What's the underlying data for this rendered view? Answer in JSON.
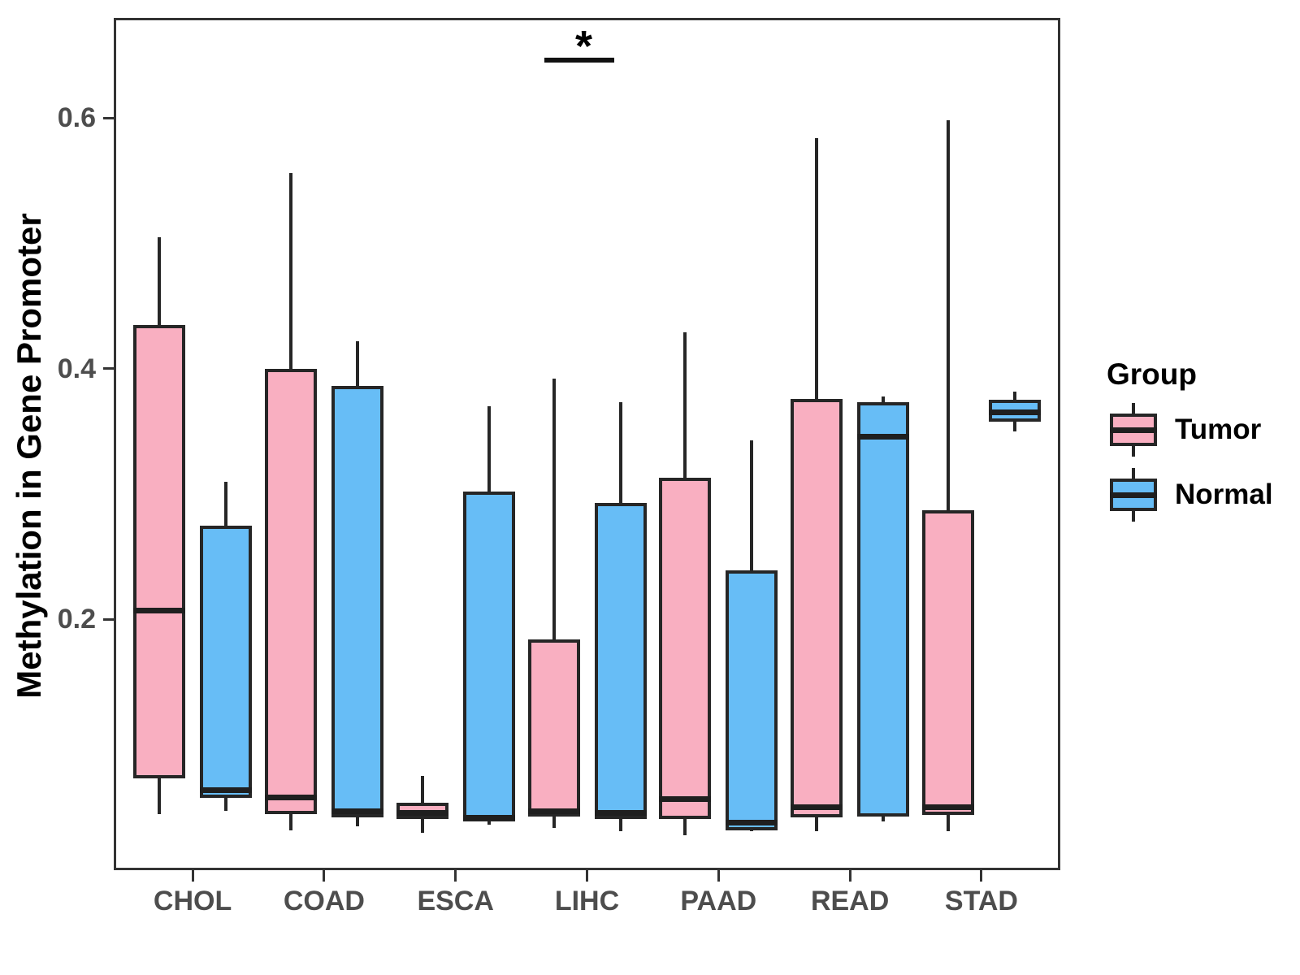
{
  "chart_data": {
    "type": "boxplot",
    "title": "",
    "xlabel": "",
    "ylabel": "Methylation in Gene Promoter",
    "categories": [
      "CHOL",
      "COAD",
      "ESCA",
      "LIHC",
      "PAAD",
      "READ",
      "STAD"
    ],
    "y_ticks": [
      "0.2",
      "0.4",
      "0.6"
    ],
    "ylim": [
      0,
      0.68
    ],
    "grid": "off",
    "colors": {
      "tumor_fill": "#F9AFC1",
      "normal_fill": "#67BDF6",
      "box_border": "#262626",
      "axis": "#333333",
      "tick_text": "#4d4d4d"
    },
    "legend": {
      "title": "Group",
      "position": "right",
      "entries": [
        {
          "label": "Tumor",
          "color": "#F9AFC1"
        },
        {
          "label": "Normal",
          "color": "#67BDF6"
        }
      ]
    },
    "significance": {
      "category": "LIHC",
      "label": "*"
    },
    "series": [
      {
        "name": "Tumor",
        "color": "#F9AFC1",
        "boxes": [
          {
            "category": "CHOL",
            "min": 0.045,
            "q1": 0.073,
            "median": 0.207,
            "q3": 0.435,
            "max": 0.505
          },
          {
            "category": "COAD",
            "min": 0.032,
            "q1": 0.045,
            "median": 0.058,
            "q3": 0.4,
            "max": 0.556
          },
          {
            "category": "ESCA",
            "min": 0.03,
            "q1": 0.041,
            "median": 0.046,
            "q3": 0.054,
            "max": 0.075
          },
          {
            "category": "LIHC",
            "min": 0.034,
            "q1": 0.043,
            "median": 0.047,
            "q3": 0.184,
            "max": 0.392
          },
          {
            "category": "PAAD",
            "min": 0.028,
            "q1": 0.041,
            "median": 0.057,
            "q3": 0.313,
            "max": 0.429
          },
          {
            "category": "READ",
            "min": 0.031,
            "q1": 0.042,
            "median": 0.05,
            "q3": 0.376,
            "max": 0.584
          },
          {
            "category": "STAD",
            "min": 0.031,
            "q1": 0.044,
            "median": 0.05,
            "q3": 0.287,
            "max": 0.598
          }
        ]
      },
      {
        "name": "Normal",
        "color": "#67BDF6",
        "boxes": [
          {
            "category": "CHOL",
            "min": 0.047,
            "q1": 0.058,
            "median": 0.064,
            "q3": 0.275,
            "max": 0.31
          },
          {
            "category": "COAD",
            "min": 0.035,
            "q1": 0.042,
            "median": 0.047,
            "q3": 0.386,
            "max": 0.422
          },
          {
            "category": "ESCA",
            "min": 0.036,
            "q1": 0.039,
            "median": 0.042,
            "q3": 0.302,
            "max": 0.37
          },
          {
            "category": "LIHC",
            "min": 0.031,
            "q1": 0.041,
            "median": 0.046,
            "q3": 0.293,
            "max": 0.373
          },
          {
            "category": "PAAD",
            "min": 0.031,
            "q1": 0.032,
            "median": 0.038,
            "q3": 0.239,
            "max": 0.343
          },
          {
            "category": "READ",
            "min": 0.039,
            "q1": 0.043,
            "median": 0.346,
            "q3": 0.373,
            "max": 0.378
          },
          {
            "category": "STAD",
            "min": 0.35,
            "q1": 0.358,
            "median": 0.365,
            "q3": 0.375,
            "max": 0.382
          }
        ]
      }
    ]
  }
}
